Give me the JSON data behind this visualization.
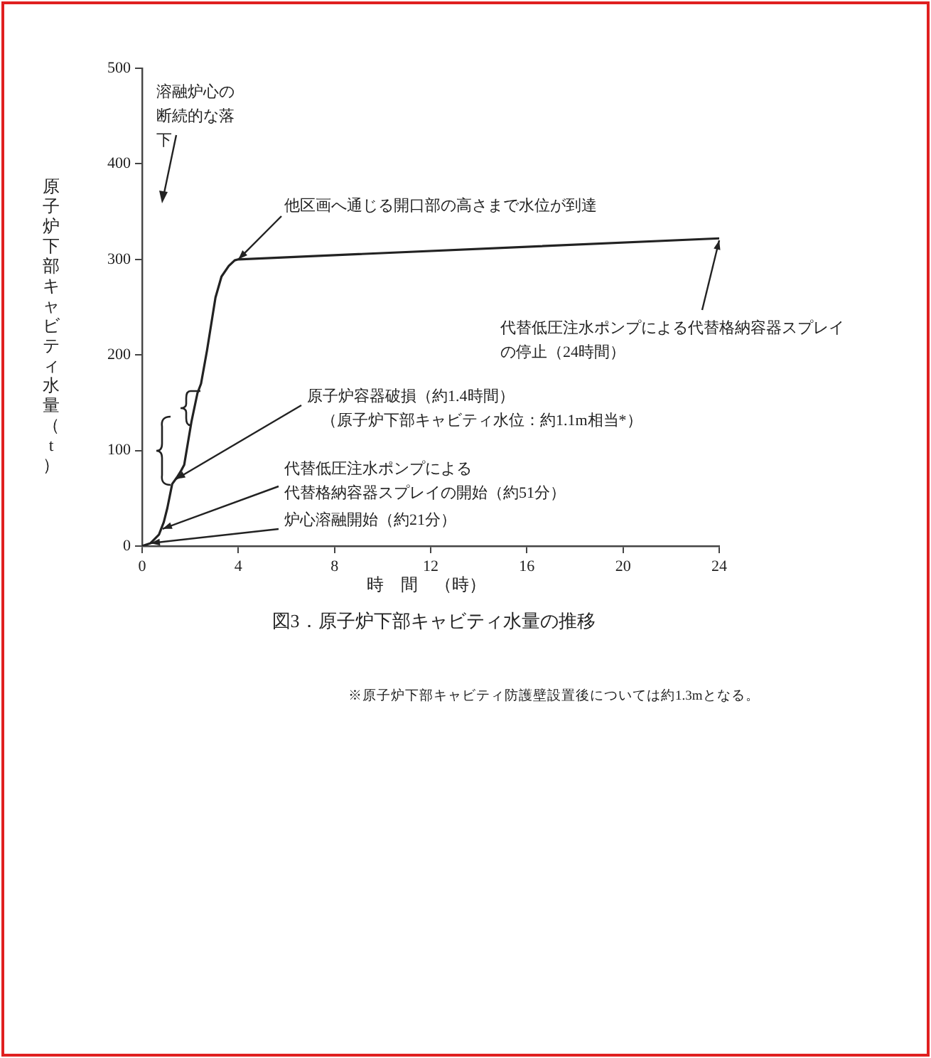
{
  "chart_data": {
    "type": "line",
    "title": "図3．原子炉下部キャビティ水量の推移",
    "xlabel": "時　間　（時）",
    "ylabel": "原子炉下部キャビティ水量（t）",
    "x": [
      0,
      0.35,
      0.7,
      0.9,
      1.05,
      1.25,
      1.45,
      1.6,
      1.75,
      1.85,
      2.05,
      2.3,
      2.45,
      2.7,
      3.05,
      3.3,
      3.6,
      3.85,
      4,
      24
    ],
    "series": [
      {
        "color": "#222222",
        "values": [
          0,
          3,
          12,
          25,
          40,
          65,
          72,
          78,
          85,
          100,
          130,
          160,
          170,
          205,
          260,
          282,
          293,
          299,
          300,
          322
        ]
      }
    ],
    "xlim": [
      0,
      24
    ],
    "xticks": [
      0,
      4,
      8,
      12,
      16,
      20,
      24
    ],
    "ylim": [
      0,
      500
    ],
    "yticks": [
      0,
      100,
      200,
      300,
      400,
      500
    ],
    "marker": "none",
    "line_style": "solid",
    "annotations": [
      "溶融炉心の断続的な落下",
      {
        "text": "他区画へ通じる開口部の高さまで水位が到達",
        "x": 4,
        "y": 300
      },
      {
        "text": "代替低圧注水ポンプによる代替格納容器スプレイの停止（24時間）",
        "x": 24,
        "y": 320
      },
      {
        "text": "原子炉容器破損（約1.4時間）（原子炉下部キャビティ水位：約1.1m相当*）",
        "x": 1.4,
        "y": 70
      },
      {
        "text": "代替低圧注水ポンプによる代替格納容器スプレイの開始（約51分）",
        "x": 0.85,
        "y": 18
      },
      {
        "text": "炉心溶融開始（約21分）",
        "x": 0.35,
        "y": 3
      },
      "※原子炉下部キャビティ防護壁設置後については約1.3mとなる。"
    ]
  }
}
